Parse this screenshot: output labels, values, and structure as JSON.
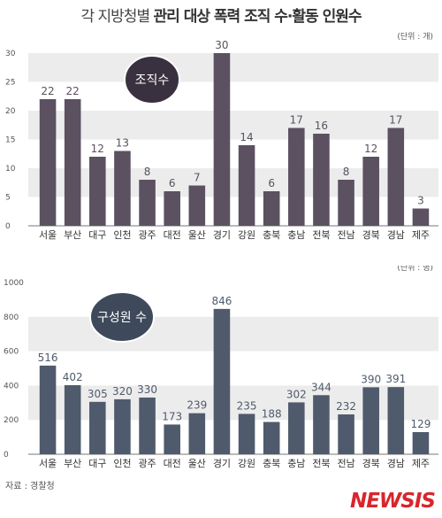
{
  "title_light": "각 지방청별",
  "title_bold": "관리 대상 폭력 조직 수·활동 인원수",
  "source": "자료 : 경찰청",
  "logo": "NEWSIS",
  "colors": {
    "chart1_bar": "#5b5160",
    "chart1_badge": "#3a3140",
    "chart2_bar": "#4f5b6c",
    "chart2_badge": "#3e4a5b"
  },
  "chart_data": [
    {
      "type": "bar",
      "badge": "조직수",
      "unit": "(단위 : 개)",
      "categories": [
        "서울",
        "부산",
        "대구",
        "인천",
        "광주",
        "대전",
        "울산",
        "경기",
        "강원",
        "충북",
        "충남",
        "전북",
        "전남",
        "경북",
        "경남",
        "제주"
      ],
      "values": [
        22,
        22,
        12,
        13,
        8,
        6,
        7,
        30,
        14,
        6,
        17,
        16,
        8,
        12,
        17,
        3
      ],
      "ylim": [
        0,
        30
      ],
      "yticks": [
        0,
        5,
        10,
        15,
        20,
        25,
        30
      ]
    },
    {
      "type": "bar",
      "badge": "구성원 수",
      "unit": "(단위 : 명)",
      "categories": [
        "서울",
        "부산",
        "대구",
        "인천",
        "광주",
        "대전",
        "울산",
        "경기",
        "강원",
        "충북",
        "충남",
        "전북",
        "전남",
        "경북",
        "경남",
        "제주"
      ],
      "values": [
        516,
        402,
        305,
        320,
        330,
        173,
        239,
        846,
        235,
        188,
        302,
        344,
        232,
        390,
        391,
        129
      ],
      "ylim": [
        0,
        1000
      ],
      "yticks": [
        0,
        200,
        400,
        600,
        800,
        1000
      ]
    }
  ]
}
